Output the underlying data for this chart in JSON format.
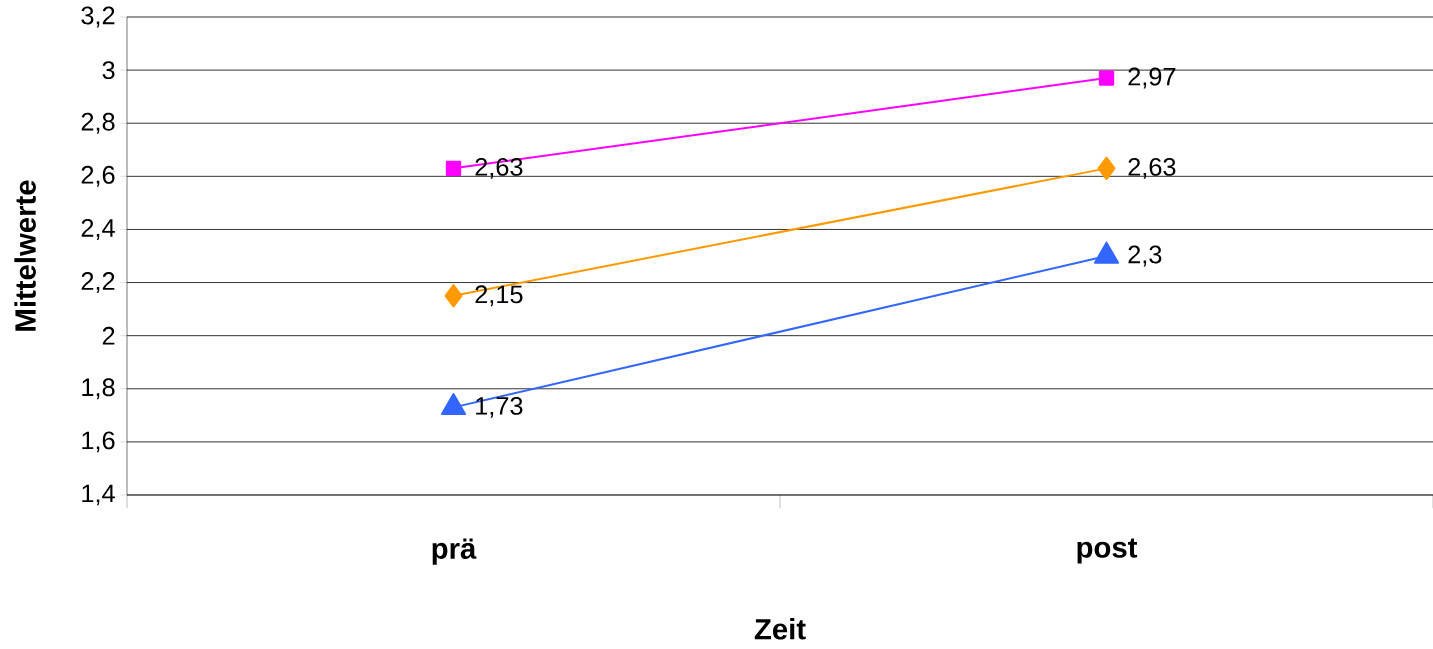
{
  "chart_data": {
    "type": "line",
    "xlabel": "Zeit",
    "ylabel": "Mittelwerte",
    "categories": [
      "prä",
      "post"
    ],
    "series": [
      {
        "color": "#ff00ff",
        "marker": "square",
        "values": [
          2.63,
          2.97
        ],
        "value_labels": [
          "2,63",
          "2,97"
        ]
      },
      {
        "color": "#ff9900",
        "marker": "diamond",
        "values": [
          2.15,
          2.63
        ],
        "value_labels": [
          "2,15",
          "2,63"
        ]
      },
      {
        "color": "#3366ff",
        "marker": "triangle",
        "values": [
          1.73,
          2.3
        ],
        "value_labels": [
          "1,73",
          "2,3"
        ]
      }
    ],
    "ylim": [
      1.4,
      3.2
    ],
    "yticks": [
      {
        "value": 1.4,
        "label": "1,4"
      },
      {
        "value": 1.6,
        "label": "1,6"
      },
      {
        "value": 1.8,
        "label": "1,8"
      },
      {
        "value": 2,
        "label": "2"
      },
      {
        "value": 2.2,
        "label": "2,2"
      },
      {
        "value": 2.4,
        "label": "2,4"
      },
      {
        "value": 2.6,
        "label": "2,6"
      },
      {
        "value": 2.8,
        "label": "2,8"
      },
      {
        "value": 3,
        "label": "3"
      },
      {
        "value": 3.2,
        "label": "3,2"
      }
    ],
    "grid": "y",
    "line_style": "solid"
  }
}
